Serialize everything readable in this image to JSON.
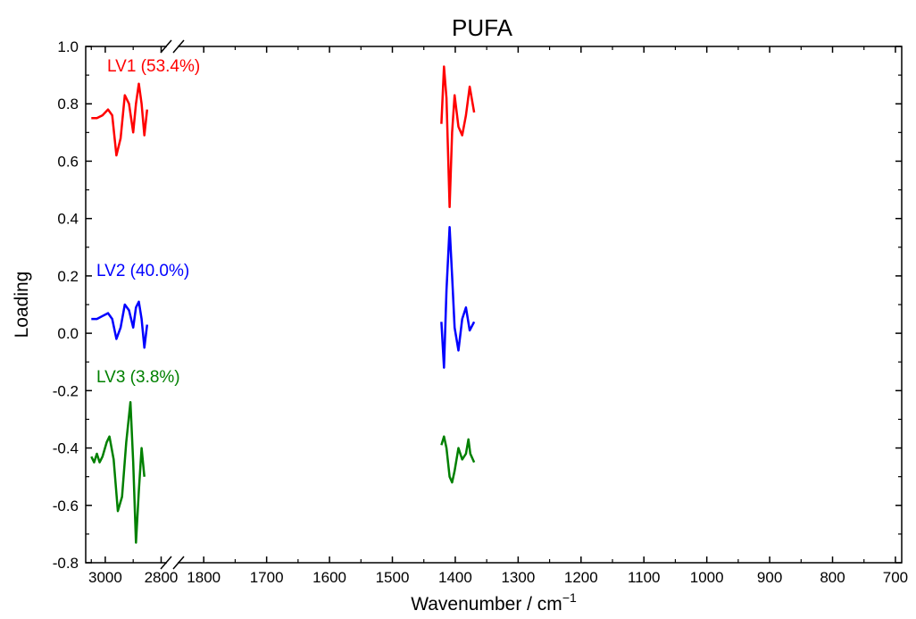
{
  "chart_data": {
    "type": "line",
    "title": "PUFA",
    "xlabel": "Wavenumber / cm",
    "xlabel_sup": "−1",
    "ylabel": "Loading",
    "ylim": [
      -0.8,
      1.0
    ],
    "y_ticks": [
      "-0.8",
      "-0.6",
      "-0.4",
      "-0.2",
      "0.0",
      "0.2",
      "0.4",
      "0.6",
      "0.8",
      "1.0"
    ],
    "x_axis_broken": true,
    "x_segment_1": {
      "range": [
        3070,
        2760
      ],
      "ticks": [
        "3000",
        "2800"
      ]
    },
    "x_segment_2": {
      "range": [
        1850,
        690
      ],
      "ticks": [
        "1800",
        "1700",
        "1600",
        "1500",
        "1400",
        "1300",
        "1200",
        "1100",
        "1000",
        "900",
        "800",
        "700"
      ]
    },
    "grid": false,
    "series": [
      {
        "name": "LV1 (53.4%)",
        "color": "#ff0000",
        "points_high": [
          [
            3050,
            0.75
          ],
          [
            3030,
            0.75
          ],
          [
            3010,
            0.76
          ],
          [
            2990,
            0.78
          ],
          [
            2975,
            0.76
          ],
          [
            2960,
            0.62
          ],
          [
            2945,
            0.68
          ],
          [
            2930,
            0.83
          ],
          [
            2915,
            0.8
          ],
          [
            2900,
            0.7
          ],
          [
            2890,
            0.8
          ],
          [
            2880,
            0.87
          ],
          [
            2870,
            0.8
          ],
          [
            2860,
            0.69
          ],
          [
            2850,
            0.78
          ]
        ],
        "points_low": [
          [
            1422,
            0.73
          ],
          [
            1418,
            0.93
          ],
          [
            1414,
            0.82
          ],
          [
            1409,
            0.44
          ],
          [
            1405,
            0.7
          ],
          [
            1401,
            0.83
          ],
          [
            1395,
            0.72
          ],
          [
            1389,
            0.69
          ],
          [
            1383,
            0.76
          ],
          [
            1377,
            0.86
          ],
          [
            1370,
            0.77
          ]
        ]
      },
      {
        "name": "LV2 (40.0%)",
        "color": "#0000ff",
        "points_high": [
          [
            3050,
            0.05
          ],
          [
            3030,
            0.05
          ],
          [
            3010,
            0.06
          ],
          [
            2990,
            0.07
          ],
          [
            2975,
            0.05
          ],
          [
            2960,
            -0.02
          ],
          [
            2945,
            0.02
          ],
          [
            2930,
            0.1
          ],
          [
            2915,
            0.08
          ],
          [
            2900,
            0.02
          ],
          [
            2890,
            0.09
          ],
          [
            2880,
            0.11
          ],
          [
            2870,
            0.05
          ],
          [
            2860,
            -0.05
          ],
          [
            2850,
            0.03
          ]
        ],
        "points_low": [
          [
            1422,
            0.04
          ],
          [
            1418,
            -0.12
          ],
          [
            1414,
            0.15
          ],
          [
            1409,
            0.37
          ],
          [
            1405,
            0.2
          ],
          [
            1401,
            0.02
          ],
          [
            1395,
            -0.06
          ],
          [
            1389,
            0.05
          ],
          [
            1383,
            0.09
          ],
          [
            1377,
            0.01
          ],
          [
            1370,
            0.04
          ]
        ]
      },
      {
        "name": "LV3 (3.8%)",
        "color": "#008000",
        "points_high": [
          [
            3050,
            -0.43
          ],
          [
            3040,
            -0.45
          ],
          [
            3030,
            -0.42
          ],
          [
            3020,
            -0.45
          ],
          [
            3010,
            -0.43
          ],
          [
            2995,
            -0.38
          ],
          [
            2985,
            -0.36
          ],
          [
            2970,
            -0.44
          ],
          [
            2955,
            -0.62
          ],
          [
            2940,
            -0.57
          ],
          [
            2925,
            -0.38
          ],
          [
            2910,
            -0.24
          ],
          [
            2900,
            -0.45
          ],
          [
            2890,
            -0.73
          ],
          [
            2880,
            -0.55
          ],
          [
            2870,
            -0.4
          ],
          [
            2860,
            -0.5
          ]
        ],
        "points_low": [
          [
            1422,
            -0.39
          ],
          [
            1418,
            -0.36
          ],
          [
            1414,
            -0.4
          ],
          [
            1409,
            -0.5
          ],
          [
            1405,
            -0.52
          ],
          [
            1401,
            -0.48
          ],
          [
            1395,
            -0.4
          ],
          [
            1389,
            -0.44
          ],
          [
            1383,
            -0.42
          ],
          [
            1379,
            -0.37
          ],
          [
            1376,
            -0.42
          ],
          [
            1370,
            -0.45
          ]
        ]
      }
    ]
  }
}
